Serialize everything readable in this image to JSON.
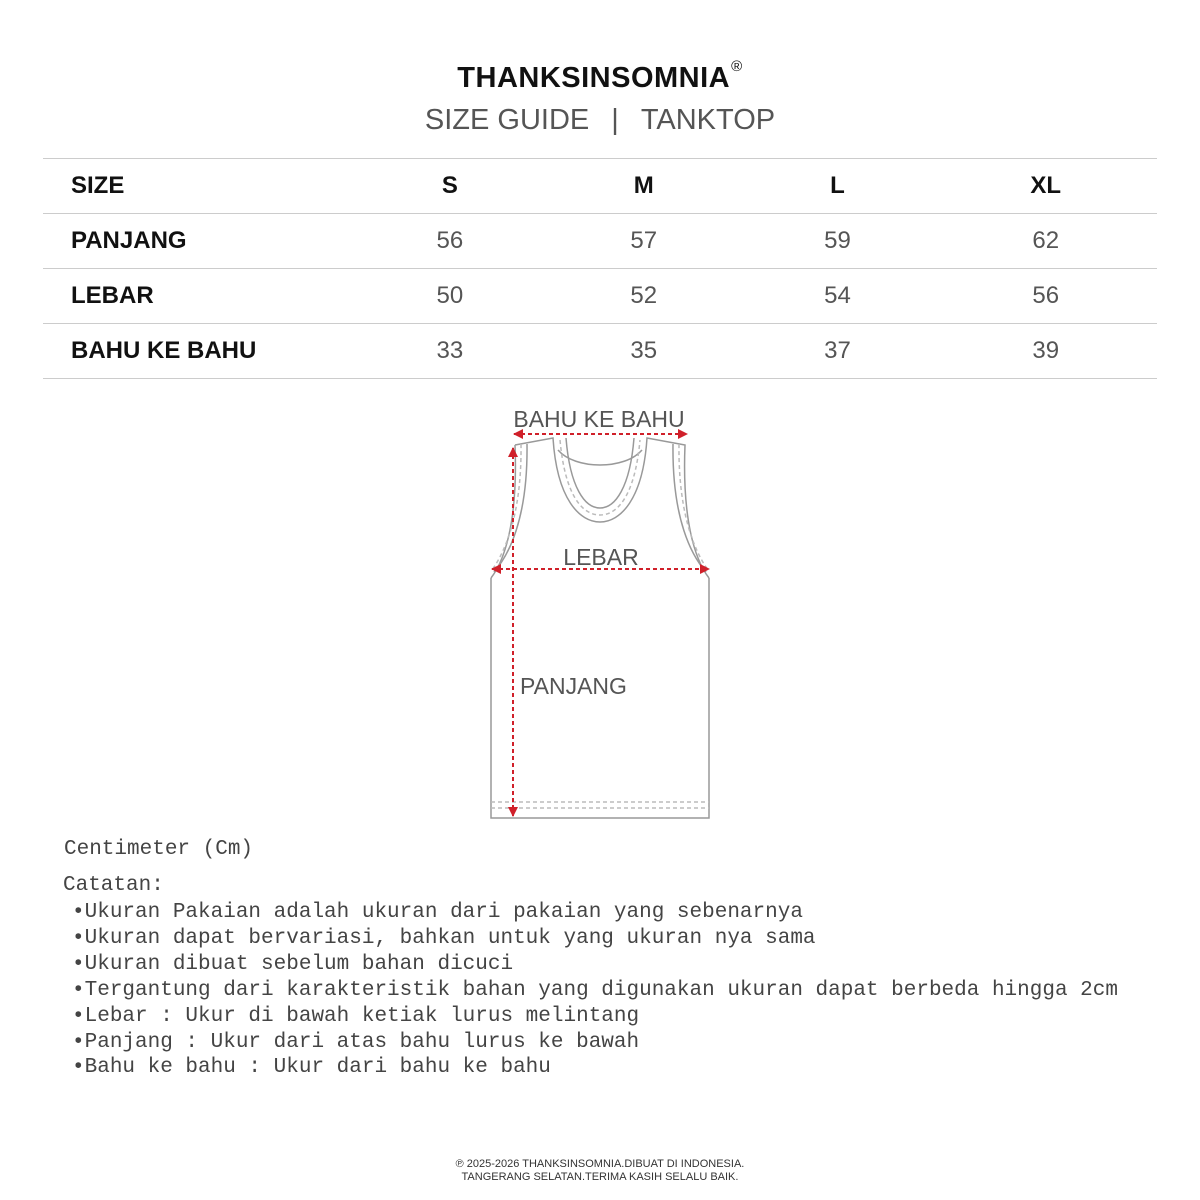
{
  "brand": {
    "name": "THANKSINSOMNIA",
    "mark": "®"
  },
  "subtitle": {
    "left": "SIZE GUIDE",
    "separator": "|",
    "right": "TANKTOP"
  },
  "table": {
    "headers": [
      "SIZE",
      "S",
      "M",
      "L",
      "XL"
    ],
    "rows": [
      {
        "label": "PANJANG",
        "values": [
          "56",
          "57",
          "59",
          "62"
        ]
      },
      {
        "label": "LEBAR",
        "values": [
          "50",
          "52",
          "54",
          "56"
        ]
      },
      {
        "label": "BAHU KE BAHU",
        "values": [
          "33",
          "35",
          "37",
          "39"
        ]
      }
    ]
  },
  "diagram": {
    "bahu": "BAHU KE BAHU",
    "lebar": "LEBAR",
    "panjang": "PANJANG",
    "arrow_color": "#d0202a"
  },
  "unit": "Centimeter (Cm)",
  "notes_title": "Catatan:",
  "notes": [
    "Ukuran Pakaian adalah ukuran dari pakaian yang sebenarnya",
    "Ukuran dapat bervariasi, bahkan untuk yang ukuran nya sama",
    "Ukuran dibuat sebelum bahan dicuci",
    "Tergantung dari karakteristik bahan yang digunakan ukuran dapat berbeda hingga 2cm",
    "Lebar : Ukur di bawah ketiak lurus melintang",
    "Panjang : Ukur dari atas bahu lurus ke bawah",
    "Bahu ke bahu : Ukur dari bahu ke bahu"
  ],
  "footer": {
    "line1": "℗ 2025-2026 THANKSINSOMNIA.DIBUAT DI INDONESIA.",
    "line2": "TANGERANG SELATAN.TERIMA KASIH SELALU BAIK."
  }
}
